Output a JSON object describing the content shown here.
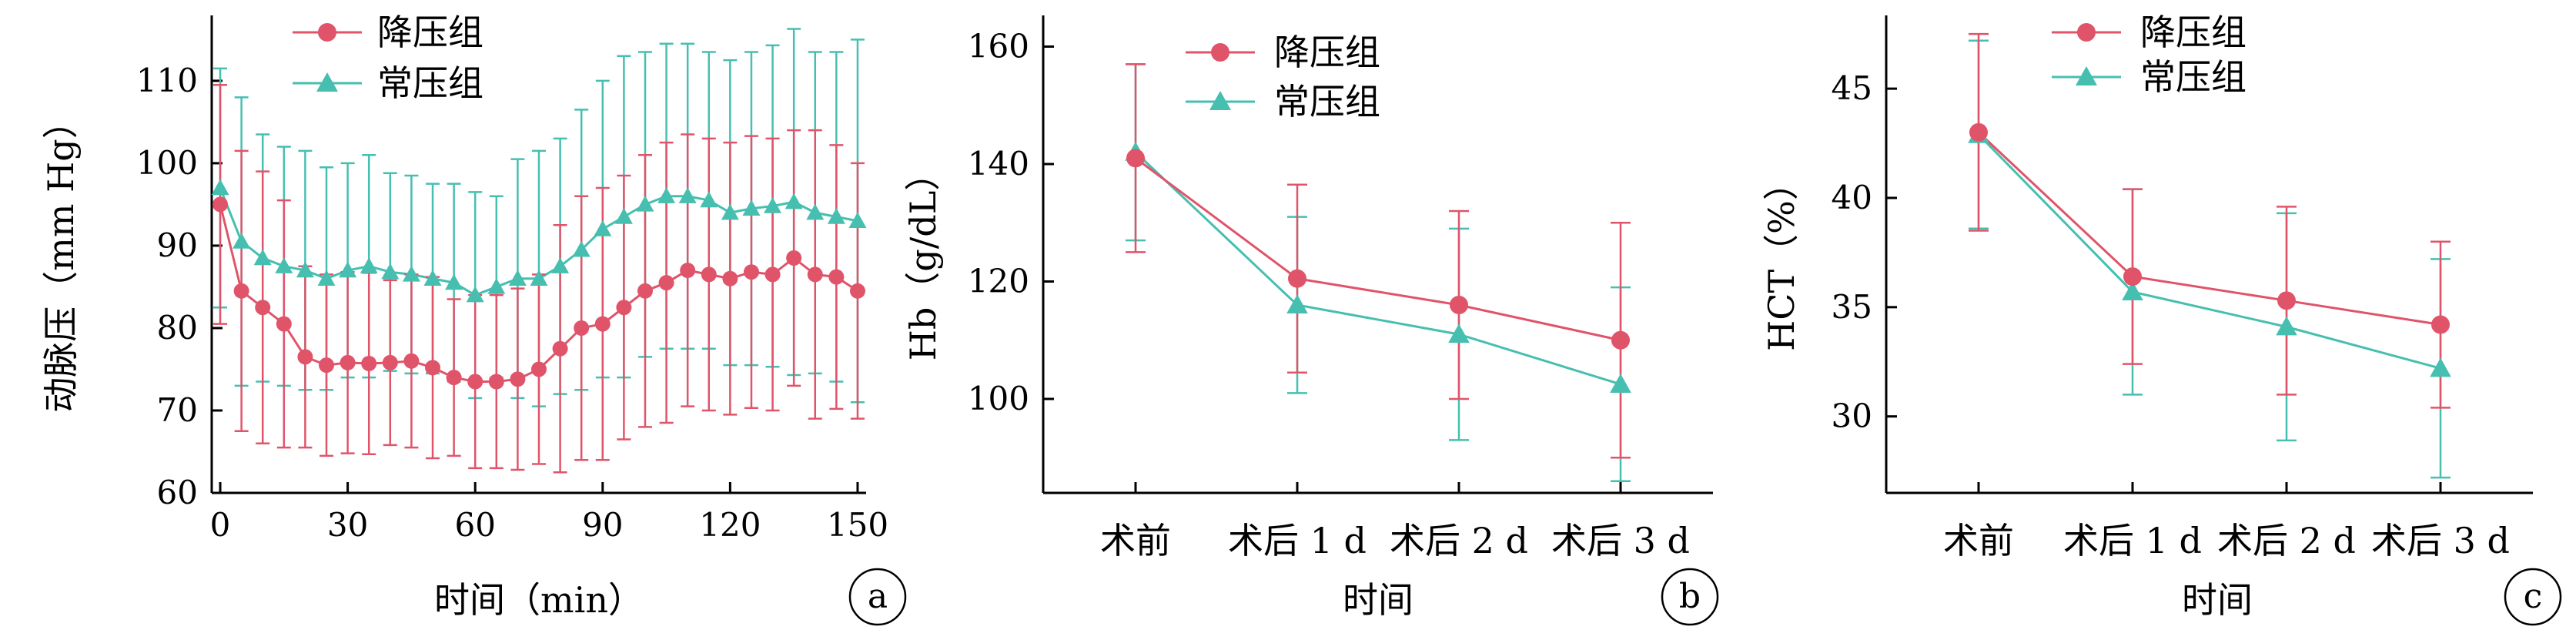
{
  "colors": {
    "red": "#e0546a",
    "teal": "#46bfb0"
  },
  "chart_data": [
    {
      "type": "line",
      "panel_label": "a",
      "xlabel": "时间（min）",
      "ylabel": "动脉压（mm Hg）",
      "xlim": [
        -2,
        152
      ],
      "ylim": [
        60,
        117
      ],
      "xticks": [
        0,
        30,
        60,
        90,
        120,
        150
      ],
      "yticks": [
        60,
        70,
        80,
        90,
        100,
        110
      ],
      "legend_position": "top-left",
      "x": [
        0,
        5,
        10,
        15,
        20,
        25,
        30,
        35,
        40,
        45,
        50,
        55,
        60,
        65,
        70,
        75,
        80,
        85,
        90,
        95,
        100,
        105,
        110,
        115,
        120,
        125,
        130,
        135,
        140,
        145,
        150
      ],
      "series": [
        {
          "name": "降压组",
          "marker": "circle",
          "color": "#e0546a",
          "values": [
            95,
            84.5,
            82.5,
            80.5,
            76.5,
            75.5,
            75.8,
            75.7,
            75.8,
            76,
            75.2,
            74,
            73.5,
            73.5,
            73.8,
            75,
            77.5,
            80,
            80.5,
            82.5,
            84.5,
            85.5,
            87,
            86.5,
            86,
            86.8,
            86.5,
            88.5,
            86.5,
            86.2,
            84.5
          ],
          "errors": [
            14.5,
            17,
            16.5,
            15,
            11,
            11,
            11,
            11,
            10,
            10.5,
            11,
            9.5,
            10.5,
            10.5,
            11,
            11.5,
            15,
            16,
            16.5,
            16,
            16.5,
            17,
            16.5,
            16.5,
            16.5,
            16.5,
            16.5,
            15.5,
            17.5,
            16,
            15.5
          ]
        },
        {
          "name": "常压组",
          "marker": "triangle",
          "color": "#46bfb0",
          "values": [
            97,
            90.5,
            88.5,
            87.5,
            87,
            86,
            87,
            87.5,
            86.8,
            86.5,
            86,
            85.5,
            84,
            85,
            86,
            86,
            87.5,
            89.5,
            92,
            93.5,
            95,
            96,
            96,
            95.5,
            94,
            94.5,
            94.8,
            95.3,
            94,
            93.5,
            93
          ],
          "errors": [
            14.5,
            17.5,
            15,
            14.5,
            14.5,
            13.5,
            13,
            13.5,
            12,
            12,
            11.5,
            12,
            12.5,
            11,
            14.5,
            15.5,
            15.5,
            17,
            18,
            19.5,
            18.5,
            18.5,
            18.5,
            18,
            18.5,
            19,
            19.5,
            21,
            19.5,
            20,
            22
          ]
        }
      ]
    },
    {
      "type": "line",
      "panel_label": "b",
      "xlabel": "时间",
      "ylabel": "Hb（g/dL）",
      "categories": [
        "术前",
        "术后 1 d",
        "术后 2 d",
        "术后 3 d"
      ],
      "ylim": [
        84,
        164
      ],
      "yticks": [
        100,
        120,
        140,
        160
      ],
      "legend_position": "top-center",
      "series": [
        {
          "name": "降压组",
          "marker": "circle",
          "color": "#e0546a",
          "values": [
            141,
            120.5,
            116,
            110
          ],
          "errors": [
            16,
            16,
            16,
            20
          ]
        },
        {
          "name": "常压组",
          "marker": "triangle",
          "color": "#46bfb0",
          "values": [
            142,
            116,
            111,
            102.5
          ],
          "errors": [
            15,
            15,
            18,
            16.5
          ]
        }
      ]
    },
    {
      "type": "line",
      "panel_label": "c",
      "xlabel": "时间",
      "ylabel": "HCT（%）",
      "categories": [
        "术前",
        "术后 1 d",
        "术后 2 d",
        "术后 3 d"
      ],
      "ylim": [
        26.5,
        48
      ],
      "yticks": [
        30,
        35,
        40,
        45
      ],
      "legend_position": "top-center",
      "series": [
        {
          "name": "降压组",
          "marker": "circle",
          "color": "#e0546a",
          "values": [
            43,
            36.4,
            35.3,
            34.2
          ],
          "errors": [
            4.5,
            4,
            4.3,
            3.8
          ]
        },
        {
          "name": "常压组",
          "marker": "triangle",
          "color": "#46bfb0",
          "values": [
            42.9,
            35.7,
            34.1,
            32.2
          ],
          "errors": [
            4.3,
            4.7,
            5.2,
            5
          ]
        }
      ]
    }
  ]
}
